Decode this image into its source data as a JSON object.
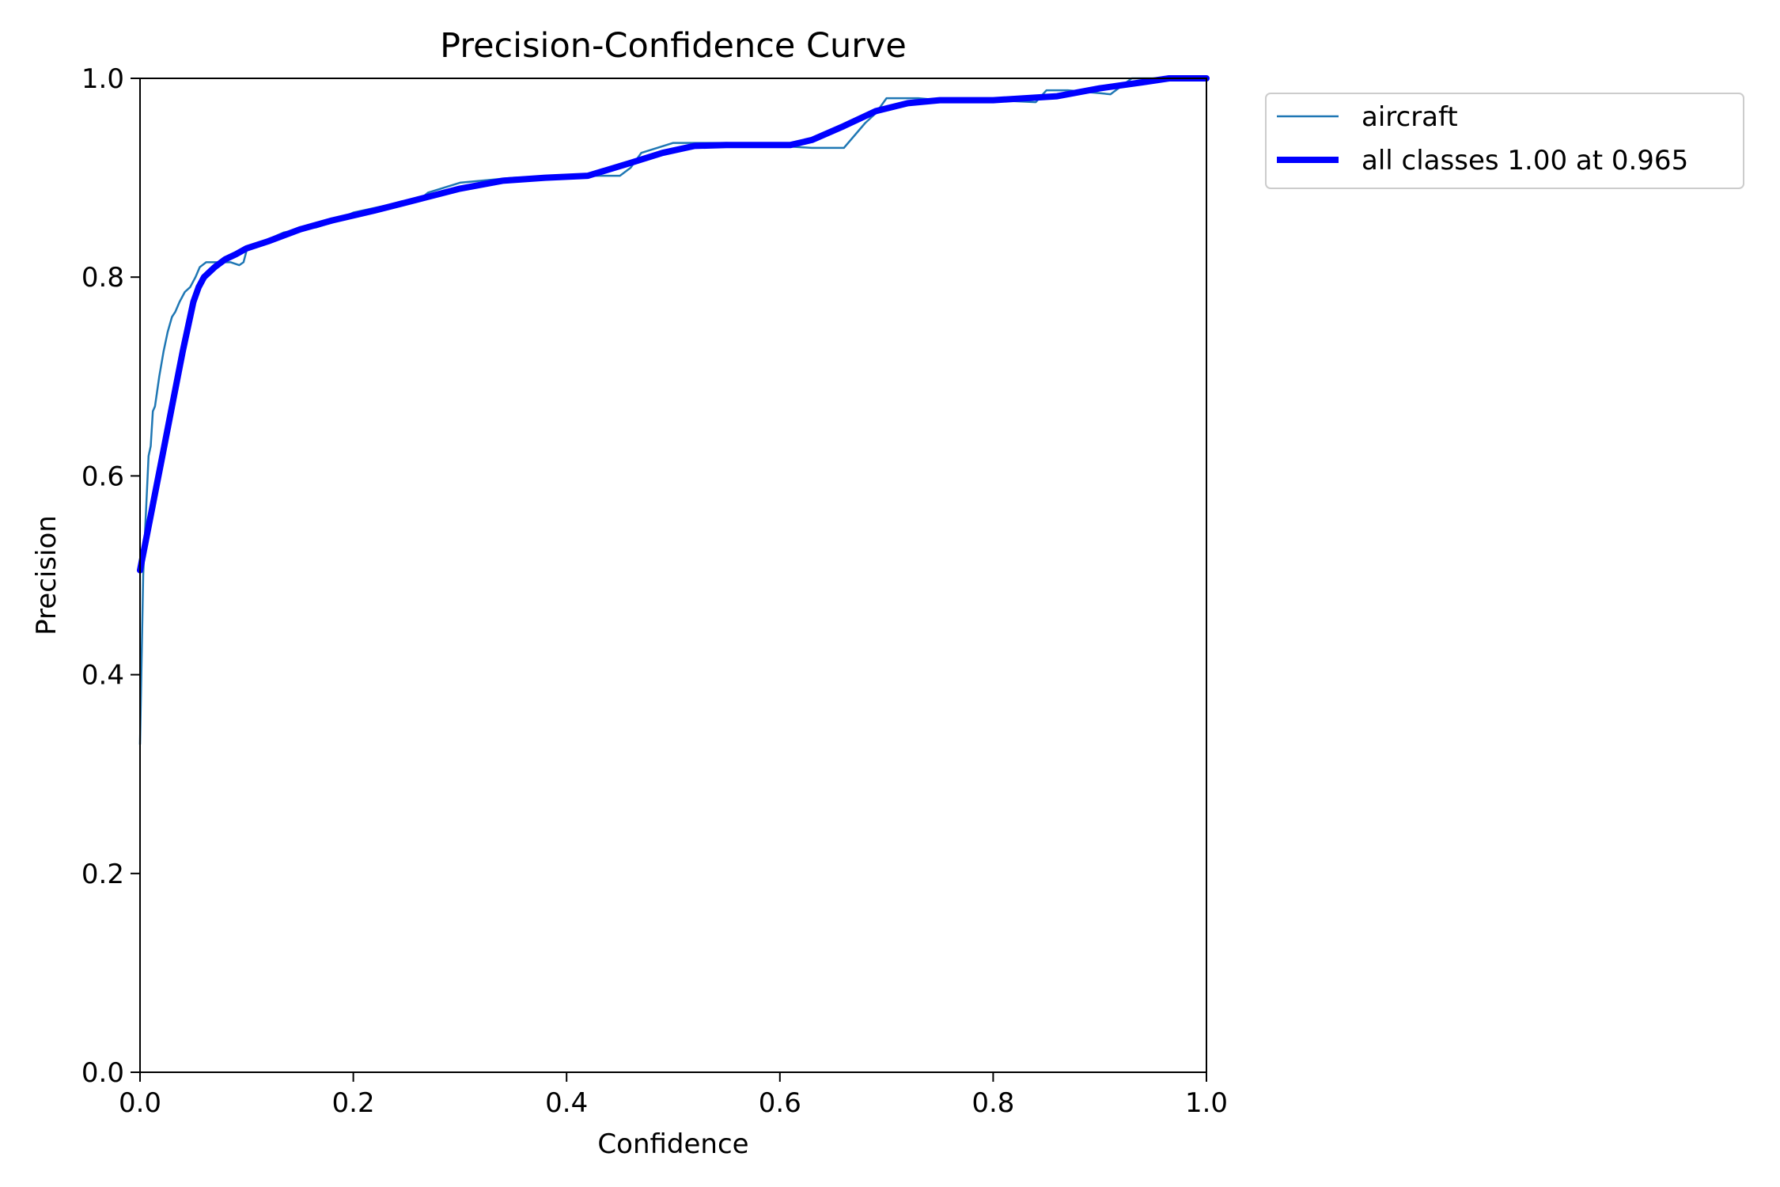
{
  "chart_data": {
    "type": "line",
    "title": "Precision-Confidence Curve",
    "xlabel": "Confidence",
    "ylabel": "Precision",
    "xlim": [
      0.0,
      1.0
    ],
    "ylim": [
      0.0,
      1.0
    ],
    "xticks": [
      "0.0",
      "0.2",
      "0.4",
      "0.6",
      "0.8",
      "1.0"
    ],
    "yticks": [
      "0.0",
      "0.2",
      "0.4",
      "0.6",
      "0.8",
      "1.0"
    ],
    "grid": false,
    "legend_position": "outside upper right",
    "series": [
      {
        "name": "aircraft",
        "color": "#1f77b4",
        "style": "thin",
        "x": [
          0.0,
          0.003,
          0.005,
          0.008,
          0.01,
          0.012,
          0.014,
          0.018,
          0.022,
          0.026,
          0.03,
          0.033,
          0.037,
          0.042,
          0.047,
          0.052,
          0.056,
          0.062,
          0.068,
          0.075,
          0.085,
          0.093,
          0.097,
          0.1,
          0.11,
          0.12,
          0.135,
          0.15,
          0.165,
          0.18,
          0.2,
          0.23,
          0.26,
          0.27,
          0.3,
          0.35,
          0.4,
          0.45,
          0.46,
          0.47,
          0.5,
          0.55,
          0.6,
          0.63,
          0.66,
          0.68,
          0.69,
          0.7,
          0.73,
          0.75,
          0.8,
          0.84,
          0.85,
          0.87,
          0.9,
          0.91,
          0.93,
          0.965,
          1.0
        ],
        "y": [
          0.33,
          0.5,
          0.55,
          0.62,
          0.63,
          0.665,
          0.67,
          0.7,
          0.725,
          0.745,
          0.76,
          0.765,
          0.775,
          0.785,
          0.79,
          0.8,
          0.81,
          0.815,
          0.815,
          0.815,
          0.815,
          0.812,
          0.815,
          0.827,
          0.832,
          0.838,
          0.845,
          0.848,
          0.85,
          0.855,
          0.865,
          0.872,
          0.876,
          0.885,
          0.895,
          0.9,
          0.902,
          0.902,
          0.91,
          0.925,
          0.935,
          0.935,
          0.932,
          0.93,
          0.93,
          0.955,
          0.965,
          0.98,
          0.98,
          0.978,
          0.978,
          0.976,
          0.988,
          0.988,
          0.985,
          0.984,
          1.0,
          1.0,
          1.0
        ]
      },
      {
        "name": "all classes 1.00 at 0.965",
        "color": "#0000ff",
        "style": "thick",
        "x": [
          0.0,
          0.01,
          0.02,
          0.03,
          0.04,
          0.05,
          0.055,
          0.06,
          0.07,
          0.08,
          0.09,
          0.1,
          0.12,
          0.15,
          0.18,
          0.22,
          0.26,
          0.3,
          0.34,
          0.38,
          0.42,
          0.46,
          0.49,
          0.52,
          0.55,
          0.58,
          0.61,
          0.63,
          0.66,
          0.69,
          0.72,
          0.75,
          0.8,
          0.86,
          0.9,
          0.94,
          0.965,
          1.0
        ],
        "y": [
          0.505,
          0.56,
          0.615,
          0.67,
          0.725,
          0.775,
          0.79,
          0.8,
          0.81,
          0.818,
          0.823,
          0.829,
          0.836,
          0.848,
          0.857,
          0.867,
          0.878,
          0.889,
          0.897,
          0.9,
          0.902,
          0.915,
          0.925,
          0.932,
          0.933,
          0.933,
          0.933,
          0.938,
          0.952,
          0.967,
          0.975,
          0.978,
          0.978,
          0.982,
          0.99,
          0.996,
          1.0,
          1.0
        ]
      }
    ]
  }
}
